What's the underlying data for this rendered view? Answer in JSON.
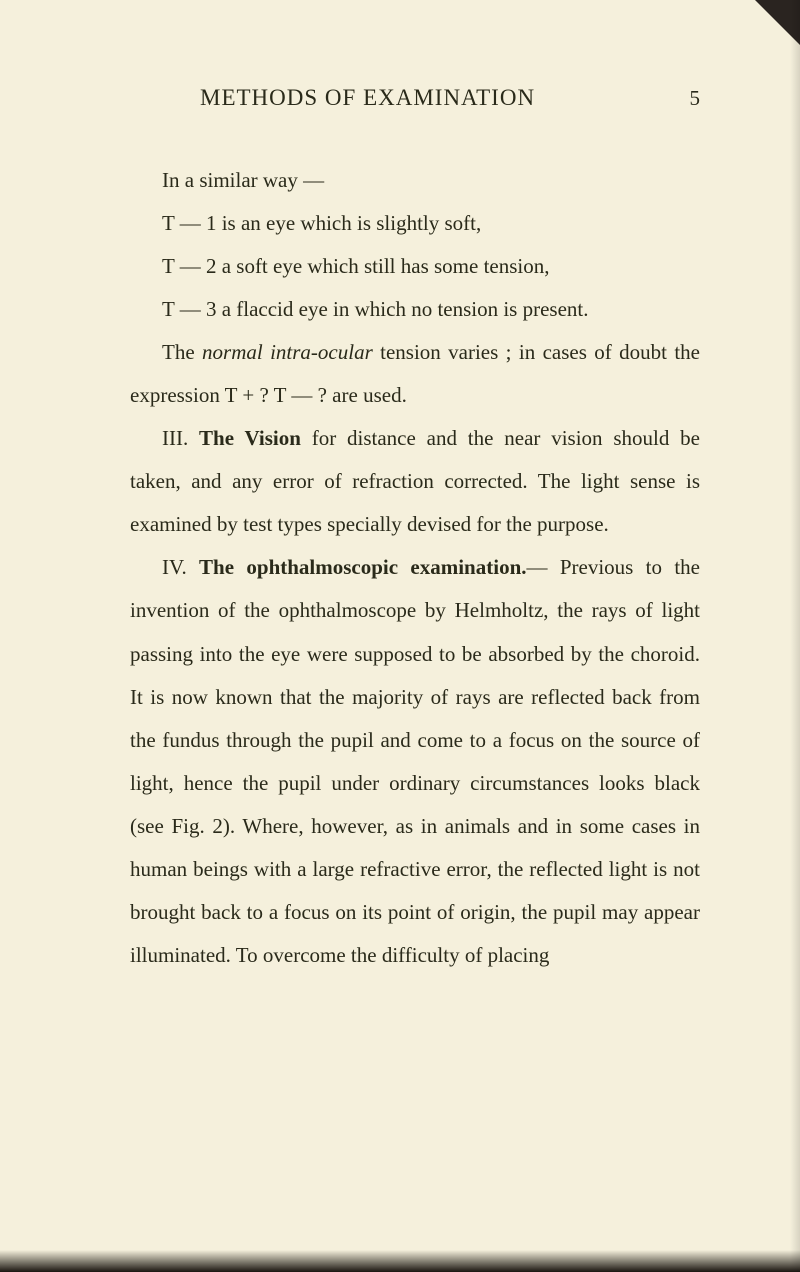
{
  "page": {
    "header_title": "METHODS OF EXAMINATION",
    "page_number": "5",
    "background_color": "#f5f0dc",
    "text_color": "#2a2a1a",
    "font_size": 21,
    "line_height": 2.05
  },
  "paragraphs": {
    "p1": "In a similar way —",
    "p2": "T — 1 is an eye which is slightly soft,",
    "p3": "T — 2 a soft eye which still has some tension,",
    "p4": "T — 3 a flaccid eye in which no tension is present.",
    "p5_a": "The ",
    "p5_italic": "normal intra-ocular",
    "p5_b": " tension varies ; in cases of doubt the expression T + ? T — ? are used.",
    "p6_a": "III. ",
    "p6_bold": "The Vision",
    "p6_b": " for distance and the near vision should be taken, and any error of refraction cor­rected. The light sense is examined by test types specially devised for the purpose.",
    "p7_a": "IV. ",
    "p7_bold": "The ophthalmoscopic examination.",
    "p7_b": "— Previous to the invention of the ophthalmoscope by Helmholtz, the rays of light passing into the eye were supposed to be absorbed by the choroid. It is now known that the majority of rays are reflected back from the fundus through the pupil and come to a focus on the source of light, hence the pupil under ordinary circumstances looks black (see Fig. 2). Where, however, as in animals and in some cases in human beings with a large refractive error, the reflected light is not brought back to a focus on its point of origin, the pupil may appear illuminated. To overcome the difficulty of placing"
  }
}
